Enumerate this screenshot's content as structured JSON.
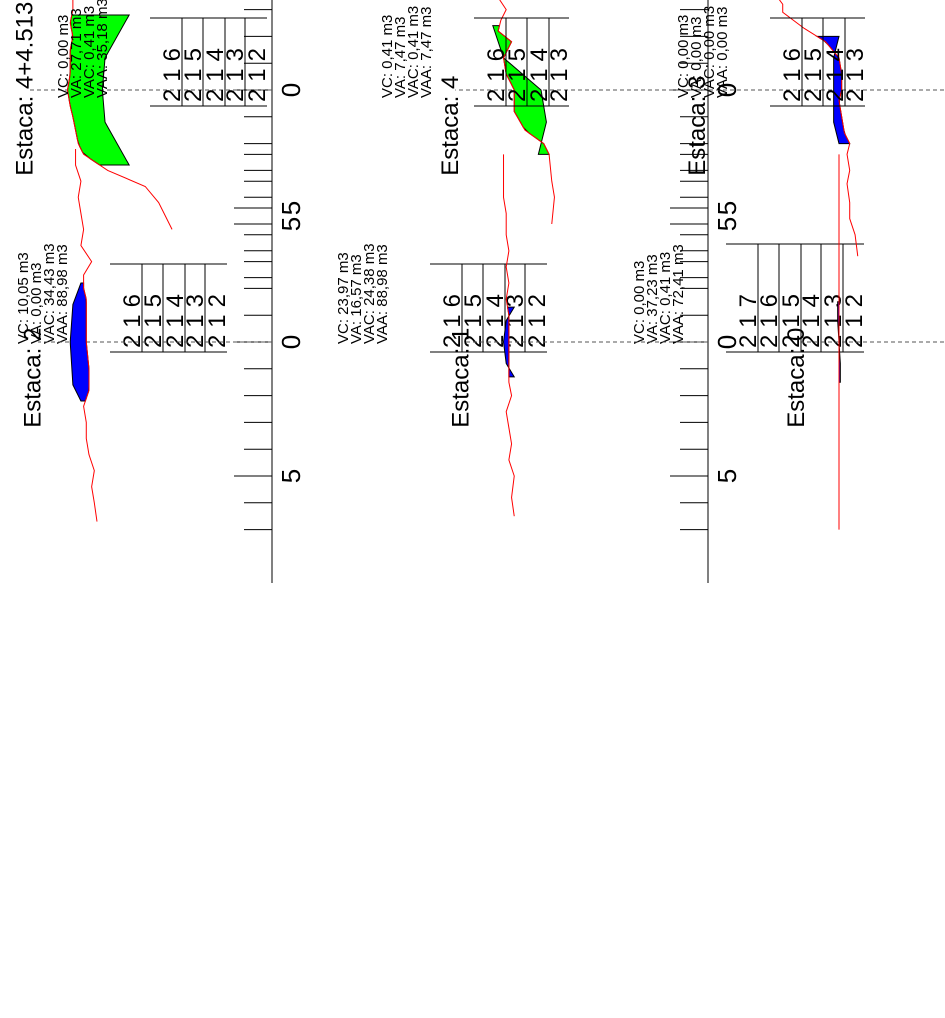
{
  "sections": [
    {
      "title": "Estaca: 4+4.513",
      "stats": [
        "VC: 10,05 m3",
        "VA: 0,00 m3",
        "VAC: 34,43 m3",
        "VAA: 88,98 m3"
      ],
      "elevations": [
        "216",
        "215",
        "214",
        "213",
        "212"
      ],
      "offset_labels": [
        "5",
        "0",
        "5"
      ],
      "fill_color": "#00ff00",
      "ground": [
        [
          -5.2,
          -0.3
        ],
        [
          -4.6,
          0.0
        ],
        [
          -4.2,
          0.2
        ],
        [
          -3.6,
          0.7
        ],
        [
          -3.0,
          2.1
        ],
        [
          -2.4,
          3.0
        ],
        [
          -2.0,
          3.2
        ],
        [
          -1.5,
          3.3
        ],
        [
          -1.0,
          3.4
        ],
        [
          -0.6,
          3.5
        ],
        [
          0.0,
          3.6
        ],
        [
          0.6,
          3.5
        ],
        [
          1.0,
          3.5
        ],
        [
          1.5,
          3.5
        ],
        [
          2.0,
          3.4
        ],
        [
          2.5,
          3.5
        ],
        [
          3.0,
          3.4
        ],
        [
          3.6,
          3.4
        ],
        [
          4.2,
          3.3
        ],
        [
          4.8,
          3.3
        ],
        [
          5.5,
          3.4
        ],
        [
          6.0,
          3.2
        ],
        [
          6.8,
          3.2
        ]
      ],
      "surface": [
        [
          -2.8,
          1.3
        ],
        [
          -1.2,
          2.2
        ],
        [
          0.0,
          2.3
        ],
        [
          1.2,
          2.2
        ],
        [
          2.8,
          1.3
        ]
      ],
      "ground_min": -0.3,
      "ground_max": 3.6
    },
    {
      "title": "Estaca: 4",
      "stats": [
        "VC: 23,97 m3",
        "VA: 16,57 m3",
        "VAC: 24,38 m3",
        "VAA: 88,98 m3"
      ],
      "elevations": [
        "216",
        "215",
        "214",
        "213",
        "212"
      ],
      "offset_labels": [
        "5",
        "0",
        "5"
      ],
      "fill_color": "#00ff00",
      "ground": [
        [
          -5.0,
          1.8
        ],
        [
          -4.0,
          1.7
        ],
        [
          -3.4,
          1.8
        ],
        [
          -2.4,
          1.9
        ],
        [
          -2.0,
          2.1
        ],
        [
          -1.5,
          2.8
        ],
        [
          -0.8,
          3.2
        ],
        [
          0.0,
          3.2
        ],
        [
          0.6,
          3.5
        ],
        [
          1.2,
          3.6
        ],
        [
          1.8,
          3.3
        ],
        [
          2.2,
          3.8
        ],
        [
          2.6,
          3.7
        ],
        [
          3.0,
          3.5
        ],
        [
          3.6,
          3.9
        ],
        [
          4.2,
          3.9
        ],
        [
          4.8,
          4.0
        ],
        [
          5.4,
          3.5
        ],
        [
          6.2,
          4.0
        ]
      ],
      "surface": [
        [
          -2.4,
          2.3
        ],
        [
          -1.2,
          2.0
        ],
        [
          0.0,
          2.2
        ],
        [
          1.2,
          3.6
        ],
        [
          2.4,
          4.0
        ]
      ],
      "ground_min": 1.7,
      "ground_max": 4.0
    },
    {
      "title": "Estaca: 3",
      "stats": [
        "VC: 0,00 m3",
        "VA: 37,23 m3",
        "VAC: 0,41 m3",
        "VAA: 72,41 m3"
      ],
      "elevations": [
        "217",
        "216",
        "215",
        "214",
        "213",
        "212"
      ],
      "offset_labels": [
        "5",
        "0",
        "5"
      ],
      "fill_color": "#0000ff",
      "ground": [
        [
          -6.2,
          1.8
        ],
        [
          -5.4,
          1.9
        ],
        [
          -4.8,
          2.1
        ],
        [
          -4.2,
          2.1
        ],
        [
          -3.5,
          2.2
        ],
        [
          -3.0,
          2.1
        ],
        [
          -2.4,
          2.2
        ],
        [
          -2.0,
          2.1
        ],
        [
          -1.6,
          2.3
        ],
        [
          -1.0,
          2.4
        ],
        [
          -0.4,
          2.5
        ],
        [
          0.0,
          2.4
        ],
        [
          0.6,
          2.4
        ],
        [
          1.2,
          2.5
        ],
        [
          1.8,
          3.0
        ],
        [
          2.3,
          3.8
        ],
        [
          2.9,
          4.6
        ],
        [
          3.2,
          4.6
        ],
        [
          3.6,
          4.9
        ],
        [
          3.9,
          4.9
        ],
        [
          4.3,
          5.0
        ],
        [
          4.8,
          5.3
        ],
        [
          5.4,
          5.6
        ],
        [
          6.0,
          5.9
        ],
        [
          7.0,
          6.2
        ]
      ],
      "surface": [
        [
          -2.0,
          2.5
        ],
        [
          -1.2,
          2.7
        ],
        [
          0.0,
          2.7
        ],
        [
          1.2,
          2.7
        ],
        [
          2.0,
          2.5
        ]
      ],
      "ground_min": 1.8,
      "ground_max": 6.2
    },
    {
      "title": "Estaca: 2",
      "stats": [
        "VC: 0,00 m3",
        "VA: 27,71 m3",
        "VAC: 0,41 m3",
        "VAA: 35,18 m3"
      ],
      "elevations": [
        "216",
        "215",
        "214",
        "213",
        "212"
      ],
      "offset_labels": [
        "5",
        "0",
        "5"
      ],
      "fill_color": "#0000ff",
      "ground": [
        [
          -6.7,
          2.5
        ],
        [
          -6.0,
          2.6
        ],
        [
          -5.4,
          2.7
        ],
        [
          -4.8,
          2.6
        ],
        [
          -4.2,
          2.8
        ],
        [
          -3.6,
          2.9
        ],
        [
          -3.0,
          2.9
        ],
        [
          -2.4,
          3.0
        ],
        [
          -1.8,
          2.8
        ],
        [
          -1.0,
          2.8
        ],
        [
          0.0,
          2.9
        ],
        [
          1.0,
          2.9
        ],
        [
          1.6,
          2.9
        ],
        [
          2.0,
          3.0
        ],
        [
          2.5,
          3.0
        ],
        [
          3.0,
          2.7
        ],
        [
          3.6,
          3.1
        ],
        [
          4.2,
          3.0
        ],
        [
          4.8,
          3.1
        ],
        [
          5.4,
          3.2
        ],
        [
          6.0,
          3.1
        ],
        [
          6.6,
          3.3
        ],
        [
          7.2,
          3.3
        ]
      ],
      "surface": [
        [
          -2.2,
          3.1
        ],
        [
          -1.6,
          3.4
        ],
        [
          0.0,
          3.5
        ],
        [
          1.4,
          3.4
        ],
        [
          2.2,
          3.1
        ]
      ],
      "ground_min": 2.5,
      "ground_max": 3.3
    },
    {
      "title": "Estaca: 1",
      "stats": [
        "VC: 0,41 m3",
        "VA: 7,47 m3",
        "VAC: 0,41 m3",
        "VAA: 7,47 m3"
      ],
      "elevations": [
        "216",
        "215",
        "214",
        "213"
      ],
      "offset_labels": [
        "5",
        "0",
        "5"
      ],
      "fill_color": "#0000ff",
      "ground": [
        [
          -6.5,
          3.2
        ],
        [
          -5.8,
          3.3
        ],
        [
          -5.0,
          3.2
        ],
        [
          -4.4,
          3.4
        ],
        [
          -3.8,
          3.3
        ],
        [
          -3.2,
          3.4
        ],
        [
          -2.6,
          3.5
        ],
        [
          -2.0,
          3.3
        ],
        [
          -1.5,
          3.4
        ],
        [
          -1.0,
          3.4
        ],
        [
          0.0,
          3.4
        ],
        [
          1.0,
          3.4
        ],
        [
          1.6,
          3.5
        ],
        [
          2.2,
          3.4
        ],
        [
          2.8,
          3.5
        ],
        [
          3.4,
          3.4
        ],
        [
          4.0,
          3.5
        ],
        [
          4.8,
          3.5
        ],
        [
          5.4,
          3.6
        ],
        [
          6.2,
          3.6
        ],
        [
          7.0,
          3.6
        ]
      ],
      "surface": [
        [
          -1.3,
          3.2
        ],
        [
          -0.8,
          3.5
        ],
        [
          0.0,
          3.6
        ],
        [
          0.8,
          3.5
        ],
        [
          1.3,
          3.2
        ]
      ],
      "ground_min": 3.2,
      "ground_max": 3.6
    },
    {
      "title": "Estaca: 0",
      "stats": [
        "VC: 0,00 m3",
        "VA: 0,00 m3",
        "VAC: 0,00 m3",
        "VAA: 0,00 m3"
      ],
      "elevations": [
        "216",
        "215",
        "214",
        "213"
      ],
      "offset_labels": [
        "5",
        "0",
        "5"
      ],
      "fill_color": "#0000ff",
      "ground": [
        [
          -7.0,
          2.5
        ],
        [
          -5.0,
          2.5
        ],
        [
          -3.0,
          2.5
        ],
        [
          -1.5,
          2.5
        ],
        [
          0.0,
          2.5
        ],
        [
          1.5,
          2.5
        ],
        [
          3.0,
          2.5
        ],
        [
          5.0,
          2.5
        ],
        [
          7.0,
          2.5
        ]
      ],
      "surface": [
        [
          -1.5,
          2.45
        ],
        [
          -0.8,
          2.45
        ],
        [
          0.0,
          2.5
        ],
        [
          0.8,
          2.55
        ],
        [
          1.5,
          2.55
        ]
      ],
      "ground_min": 2.5,
      "ground_max": 2.5
    }
  ]
}
